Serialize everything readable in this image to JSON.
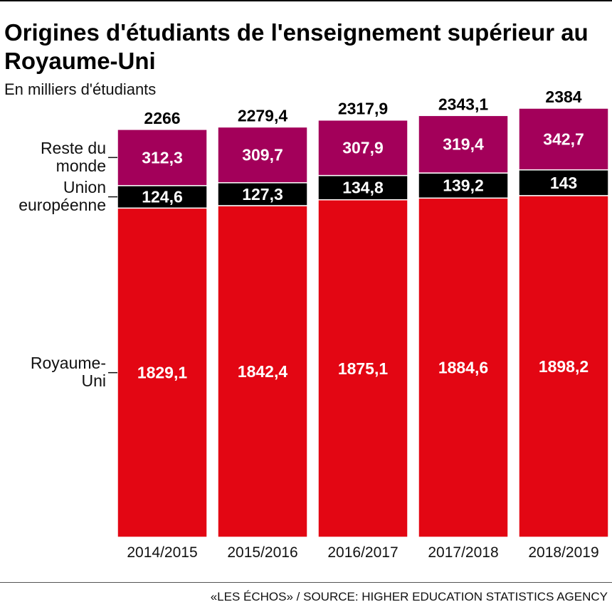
{
  "title": "Origines d'étudiants de l'enseignement supérieur au Royaume-Uni",
  "subtitle": "En milliers d'étudiants",
  "source": "«LES ÉCHOS» / SOURCE: HIGHER EDUCATION STATISTICS AGENCY",
  "chart_data": {
    "type": "bar",
    "stacked": true,
    "categories": [
      "2014/2015",
      "2015/2016",
      "2016/2017",
      "2017/2018",
      "2018/2019"
    ],
    "totals": [
      "2266",
      "2279,4",
      "2317,9",
      "2343,1",
      "2384"
    ],
    "series": [
      {
        "name": "Royaume-Uni",
        "label_lines": [
          "Royaume-",
          "Uni"
        ],
        "color": "#e30613",
        "values": [
          1829.1,
          1842.4,
          1875.1,
          1884.6,
          1898.2
        ],
        "labels": [
          "1829,1",
          "1842,4",
          "1875,1",
          "1884,6",
          "1898,2"
        ]
      },
      {
        "name": "Union européenne",
        "label_lines": [
          "Union",
          "européenne"
        ],
        "color": "#000000",
        "values": [
          124.6,
          127.3,
          134.8,
          139.2,
          143
        ],
        "labels": [
          "124,6",
          "127,3",
          "134,8",
          "139,2",
          "143"
        ]
      },
      {
        "name": "Reste du monde",
        "label_lines": [
          "Reste du",
          "monde"
        ],
        "color": "#a3005a",
        "values": [
          312.3,
          309.7,
          307.9,
          319.4,
          342.7
        ],
        "labels": [
          "312,3",
          "309,7",
          "307,9",
          "319,4",
          "342,7"
        ]
      }
    ],
    "ylim": [
      0,
      2384
    ],
    "legend": "left"
  }
}
